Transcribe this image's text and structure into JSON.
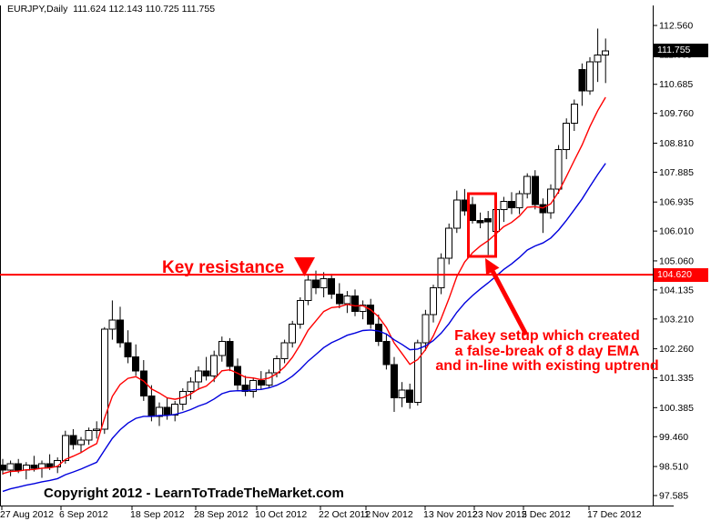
{
  "window": {
    "background": "#ffffff"
  },
  "header": {
    "title": "EURJPY,Daily  111.624 112.143 110.725 111.755"
  },
  "footer": {
    "copyright": "Copyright 2012 - LearnToTradeTheMarket.com"
  },
  "annotations": {
    "key_resistance": {
      "text": "Key resistance",
      "color": "#ff0000"
    },
    "fakey": {
      "line1": "Fakey setup which created",
      "line2": "a false-break of 8 day EMA",
      "line3": "and in-line with existing uptrend",
      "color": "#ff0000"
    },
    "current_price_label": "111.755",
    "resistance_price_label": "104.620"
  },
  "chart_data": {
    "type": "candlestick",
    "symbol": "EURJPY",
    "timeframe": "Daily",
    "title": "EURJPY,Daily  111.624 112.143 110.725 111.755",
    "current_bar": {
      "open": 111.624,
      "high": 112.143,
      "low": 110.725,
      "close": 111.755
    },
    "ylim": [
      97.585,
      112.56
    ],
    "grid": false,
    "y_tick_labels": [
      "112.560",
      "111.635",
      "110.685",
      "109.760",
      "108.810",
      "107.885",
      "106.935",
      "106.010",
      "105.060",
      "104.135",
      "103.210",
      "102.260",
      "101.335",
      "100.385",
      "99.460",
      "98.510",
      "97.585"
    ],
    "x_tick_labels": [
      "27 Aug 2012",
      "6 Sep 2012",
      "18 Sep 2012",
      "28 Sep 2012",
      "10 Oct 2012",
      "22 Oct 2012",
      "1 Nov 2012",
      "13 Nov 2012",
      "23 Nov 2012",
      "5 Dec 2012",
      "17 Dec 2012"
    ],
    "resistance_level": 104.62,
    "current_price": 111.755,
    "up_candle_color": "#ffffff",
    "down_candle_color": "#000000",
    "ema_fast_period": 8,
    "ema_slow_period": 21,
    "ema_fast_start": 98.25,
    "ema_slow_start": 97.65,
    "ema_fast_color": "#ff0000",
    "ema_slow_color": "#0000dd",
    "candles": [
      [
        98.55,
        98.75,
        98.25,
        98.4
      ],
      [
        98.4,
        98.7,
        98.2,
        98.6
      ],
      [
        98.6,
        98.75,
        98.3,
        98.4
      ],
      [
        98.4,
        98.65,
        98.1,
        98.55
      ],
      [
        98.55,
        98.85,
        98.35,
        98.45
      ],
      [
        98.45,
        98.7,
        98.15,
        98.6
      ],
      [
        98.6,
        98.9,
        98.4,
        98.5
      ],
      [
        98.5,
        98.8,
        98.3,
        98.7
      ],
      [
        98.7,
        99.65,
        98.6,
        99.5
      ],
      [
        99.5,
        99.7,
        99.05,
        99.2
      ],
      [
        99.2,
        99.45,
        98.95,
        99.35
      ],
      [
        99.35,
        99.75,
        99.2,
        99.65
      ],
      [
        99.65,
        99.95,
        99.4,
        99.7
      ],
      [
        99.7,
        102.95,
        99.55,
        102.88
      ],
      [
        102.88,
        103.8,
        102.55,
        103.18
      ],
      [
        103.18,
        103.6,
        102.3,
        102.45
      ],
      [
        102.45,
        102.85,
        101.8,
        102.0
      ],
      [
        102.0,
        102.4,
        101.4,
        101.55
      ],
      [
        101.55,
        101.9,
        100.6,
        100.75
      ],
      [
        100.75,
        101.1,
        99.95,
        100.1
      ],
      [
        100.1,
        100.55,
        99.8,
        100.4
      ],
      [
        100.4,
        100.7,
        100.0,
        100.15
      ],
      [
        100.15,
        100.6,
        99.95,
        100.5
      ],
      [
        100.5,
        101.0,
        100.3,
        100.9
      ],
      [
        100.9,
        101.35,
        100.65,
        101.2
      ],
      [
        101.2,
        101.7,
        100.95,
        101.55
      ],
      [
        101.55,
        102.0,
        101.25,
        101.4
      ],
      [
        101.4,
        102.2,
        101.2,
        102.05
      ],
      [
        102.05,
        102.65,
        101.85,
        102.5
      ],
      [
        102.5,
        102.6,
        101.55,
        101.7
      ],
      [
        101.7,
        101.95,
        100.95,
        101.1
      ],
      [
        101.1,
        101.4,
        100.75,
        100.9
      ],
      [
        100.9,
        101.35,
        100.7,
        101.25
      ],
      [
        101.25,
        101.55,
        100.95,
        101.1
      ],
      [
        101.1,
        101.6,
        101.0,
        101.5
      ],
      [
        101.5,
        102.05,
        101.35,
        101.95
      ],
      [
        101.95,
        102.55,
        101.8,
        102.45
      ],
      [
        102.45,
        103.15,
        102.3,
        103.05
      ],
      [
        103.05,
        103.9,
        102.9,
        103.8
      ],
      [
        103.8,
        104.6,
        103.65,
        104.45
      ],
      [
        104.45,
        104.75,
        104.0,
        104.2
      ],
      [
        104.2,
        104.7,
        103.9,
        104.5
      ],
      [
        104.5,
        104.65,
        103.85,
        104.0
      ],
      [
        104.0,
        104.35,
        103.55,
        103.7
      ],
      [
        103.7,
        104.1,
        103.4,
        103.95
      ],
      [
        103.95,
        104.15,
        103.3,
        103.45
      ],
      [
        103.45,
        103.8,
        103.2,
        103.65
      ],
      [
        103.65,
        103.85,
        102.9,
        103.05
      ],
      [
        103.05,
        103.35,
        102.35,
        102.5
      ],
      [
        102.5,
        102.75,
        101.6,
        101.75
      ],
      [
        101.75,
        102.0,
        100.25,
        100.7
      ],
      [
        100.7,
        101.2,
        100.4,
        100.95
      ],
      [
        100.95,
        101.15,
        100.35,
        100.55
      ],
      [
        100.55,
        102.55,
        100.45,
        102.45
      ],
      [
        102.45,
        103.5,
        102.2,
        103.35
      ],
      [
        103.35,
        104.3,
        103.1,
        104.2
      ],
      [
        104.2,
        105.3,
        104.0,
        105.15
      ],
      [
        105.15,
        106.25,
        104.95,
        106.1
      ],
      [
        106.1,
        107.3,
        105.95,
        107.0
      ],
      [
        107.0,
        107.35,
        106.5,
        106.65
      ],
      [
        106.85,
        107.1,
        106.25,
        106.35
      ],
      [
        106.35,
        106.6,
        106.1,
        106.28
      ],
      [
        106.4,
        106.65,
        105.25,
        106.3
      ],
      [
        106.0,
        106.9,
        105.9,
        106.7
      ],
      [
        106.7,
        107.1,
        106.3,
        106.95
      ],
      [
        106.95,
        107.25,
        106.55,
        106.75
      ],
      [
        106.75,
        107.3,
        106.55,
        107.2
      ],
      [
        107.2,
        107.85,
        107.05,
        107.75
      ],
      [
        107.75,
        107.95,
        106.7,
        106.85
      ],
      [
        106.85,
        107.05,
        105.95,
        106.6
      ],
      [
        106.6,
        107.5,
        106.4,
        107.35
      ],
      [
        107.35,
        108.75,
        107.2,
        108.6
      ],
      [
        108.6,
        109.6,
        108.3,
        109.45
      ],
      [
        109.45,
        110.2,
        109.2,
        110.05
      ],
      [
        111.15,
        111.35,
        110.0,
        110.47
      ],
      [
        110.47,
        111.55,
        110.35,
        111.4
      ],
      [
        111.4,
        112.46,
        110.76,
        111.62
      ],
      [
        111.624,
        112.143,
        110.725,
        111.755
      ]
    ]
  }
}
